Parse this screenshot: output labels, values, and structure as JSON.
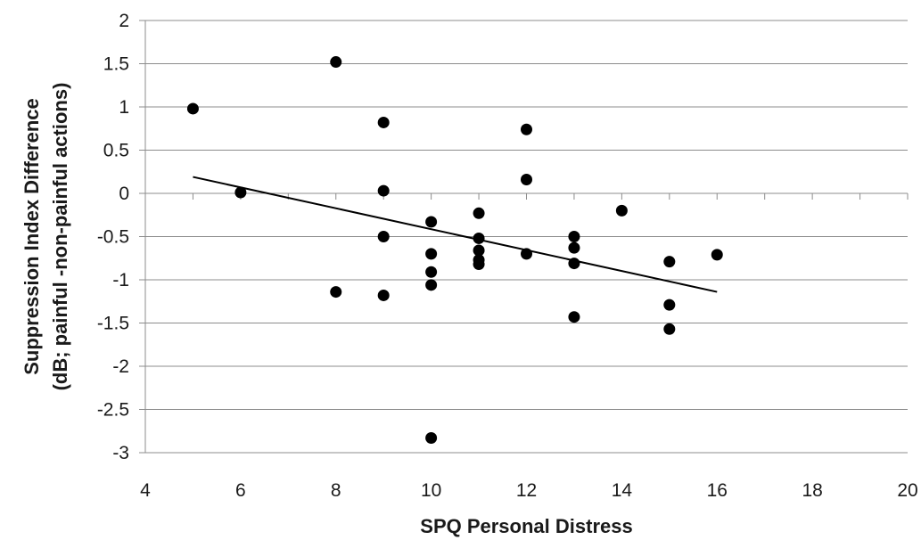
{
  "chart_data": {
    "type": "scatter",
    "xlabel": "SPQ Personal Distress",
    "ylabel_lines": [
      "Suppression Index Difference",
      "(dB; painful -non-painful actions)"
    ],
    "xlim": [
      4,
      20
    ],
    "ylim": [
      -3,
      2
    ],
    "xticks": [
      4,
      6,
      8,
      10,
      12,
      14,
      16,
      18,
      20
    ],
    "yticks": [
      2,
      1.5,
      1,
      0.5,
      0,
      -0.5,
      -1,
      -1.5,
      -2,
      -2.5,
      -3
    ],
    "grid": "horizontal",
    "series": [
      {
        "points": [
          [
            5,
            0.98
          ],
          [
            6,
            0.01
          ],
          [
            8,
            1.52
          ],
          [
            8,
            -1.14
          ],
          [
            9,
            0.82
          ],
          [
            9,
            0.03
          ],
          [
            9,
            -0.5
          ],
          [
            9,
            -1.18
          ],
          [
            10,
            -0.33
          ],
          [
            10,
            -0.7
          ],
          [
            10,
            -0.91
          ],
          [
            10,
            -1.06
          ],
          [
            10,
            -2.83
          ],
          [
            11,
            -0.23
          ],
          [
            11,
            -0.52
          ],
          [
            11,
            -0.66
          ],
          [
            11,
            -0.77
          ],
          [
            11,
            -0.82
          ],
          [
            12,
            0.74
          ],
          [
            12,
            0.16
          ],
          [
            12,
            -0.7
          ],
          [
            13,
            -0.5
          ],
          [
            13,
            -0.63
          ],
          [
            13,
            -0.81
          ],
          [
            13,
            -1.43
          ],
          [
            14,
            -0.2
          ],
          [
            15,
            -0.79
          ],
          [
            15,
            -1.29
          ],
          [
            15,
            -1.57
          ],
          [
            16,
            -0.71
          ]
        ]
      }
    ],
    "trendline": {
      "type": "linear",
      "x": [
        5,
        16
      ],
      "y": [
        0.19,
        -1.14
      ]
    }
  },
  "colors": {
    "points": "#000000",
    "trendline": "#000000",
    "grid": "#8c8c8c",
    "text": "#1a1a1a"
  }
}
